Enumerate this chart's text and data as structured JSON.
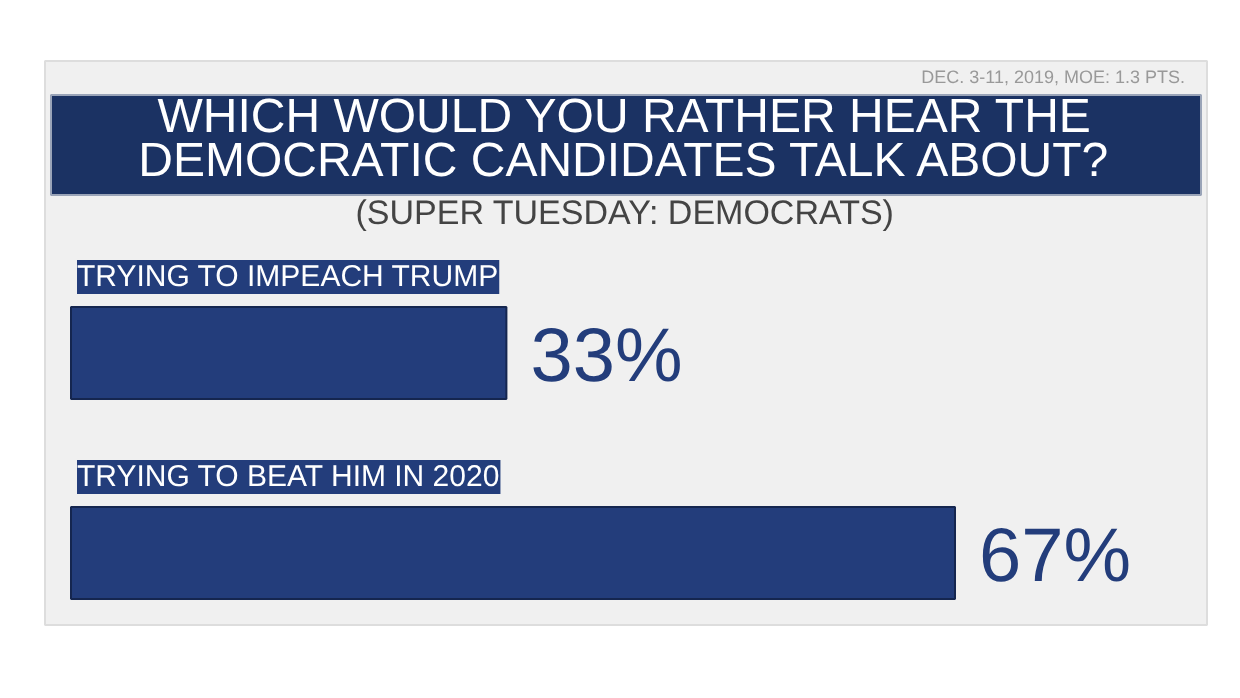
{
  "chart_data": {
    "type": "bar",
    "orientation": "horizontal",
    "title": "WHICH WOULD YOU RATHER HEAR THE\nDEMOCRATIC CANDIDATES TALK ABOUT?",
    "subtitle": "(SUPER TUESDAY: DEMOCRATS)",
    "annotations": [
      "DEC. 3-11, 2019, MOE: 1.3 PTS."
    ],
    "categories": [
      "TRYING TO IMPEACH TRUMP",
      "TRYING TO BEAT HIM IN 2020"
    ],
    "values": [
      33,
      67
    ],
    "color": "#233d7b",
    "value_labels": [
      "33%",
      "67%"
    ]
  }
}
